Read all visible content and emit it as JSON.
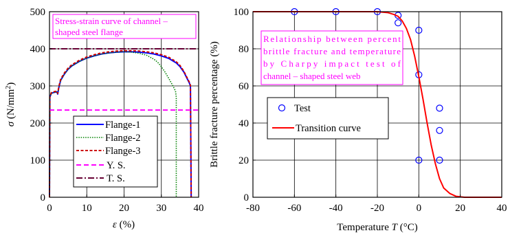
{
  "chart_data": [
    {
      "type": "line",
      "title": "Stress-strain curve of channel – shaped steel flange",
      "title_lines": [
        "Stress-strain curve of channel –",
        "shaped steel flange"
      ],
      "xlabel_symbol": "ε",
      "xlabel_unit": " (%)",
      "ylabel_symbol": "σ",
      "ylabel_unit": " (N/mm",
      "ylabel_sup": "2",
      "ylabel_close": ")",
      "xlim": [
        0,
        40
      ],
      "ylim": [
        0,
        500
      ],
      "xticks": [
        "0",
        "10",
        "20",
        "30",
        "40"
      ],
      "yticks": [
        "0",
        "100",
        "200",
        "300",
        "400",
        "500"
      ],
      "grid": true,
      "legend_position": "bottom-center",
      "colors": {
        "flange1": "#0000ff",
        "flange2": "#008000",
        "flange3": "#cc0000",
        "ys": "#ff00ff",
        "ts": "#660033",
        "annotation": "#ff00ff"
      },
      "series": [
        {
          "name": "Flange-1",
          "style": "solid",
          "x": [
            0,
            0.1,
            0.5,
            1,
            1.5,
            2,
            2.2,
            2.5,
            3,
            4,
            5,
            6,
            8,
            10,
            12,
            14,
            16,
            18,
            20,
            22,
            24,
            26,
            28,
            30,
            32,
            34,
            35,
            36,
            37,
            37.5,
            37.8,
            37.9,
            38
          ],
          "y": [
            0,
            270,
            280,
            282,
            283,
            284,
            278,
            295,
            315,
            332,
            345,
            354,
            366,
            375,
            381,
            386,
            389,
            391,
            392,
            392,
            391,
            389,
            386,
            381,
            374,
            362,
            352,
            338,
            318,
            308,
            300,
            150,
            0
          ]
        },
        {
          "name": "Flange-2",
          "style": "dotted",
          "x": [
            0,
            0.1,
            0.5,
            1,
            1.5,
            2,
            2.2,
            2.5,
            3,
            4,
            5,
            6,
            8,
            10,
            12,
            14,
            16,
            18,
            20,
            22,
            24,
            26,
            28,
            29,
            30,
            31,
            32,
            33,
            33.5,
            33.8,
            34,
            34,
            34
          ],
          "y": [
            0,
            270,
            280,
            282,
            283,
            284,
            278,
            295,
            315,
            332,
            345,
            354,
            366,
            375,
            381,
            386,
            389,
            391,
            392,
            391,
            388,
            383,
            372,
            364,
            352,
            337,
            320,
            302,
            292,
            286,
            270,
            100,
            0
          ]
        },
        {
          "name": "Flange-3",
          "style": "dashed",
          "x": [
            0,
            0.1,
            0.5,
            1,
            1.5,
            2,
            2.2,
            2.5,
            3,
            4,
            5,
            6,
            8,
            10,
            12,
            14,
            16,
            18,
            20,
            22,
            24,
            26,
            28,
            30,
            32,
            34,
            35,
            36,
            37,
            37.5,
            37.8,
            37.9,
            38
          ],
          "y": [
            0,
            270,
            282,
            284,
            285,
            286,
            280,
            298,
            318,
            335,
            348,
            357,
            369,
            378,
            384,
            389,
            392,
            394,
            395,
            395,
            394,
            392,
            389,
            384,
            377,
            365,
            355,
            340,
            320,
            310,
            302,
            150,
            0
          ]
        },
        {
          "name": "Y. S.",
          "style": "dashed",
          "x": [
            0,
            40
          ],
          "y": [
            235,
            235
          ]
        },
        {
          "name": "T. S.",
          "style": "dashdot",
          "x": [
            0,
            40
          ],
          "y": [
            400,
            400
          ]
        }
      ]
    },
    {
      "type": "scatter",
      "annotation": "Relationship between percent brittle fracture and temperature by Charpy impact test of channel – shaped steel web",
      "annotation_lines": [
        "Relationship between percent",
        "brittle fracture and temperature",
        "by Charpy impact test of",
        "channel – shaped steel web"
      ],
      "xlabel": "Temperature ",
      "xlabel_symbol": "T",
      "xlabel_unit": " (°C)",
      "ylabel": "Brittle fracture percentage  (%)",
      "xlim": [
        -80,
        40
      ],
      "ylim": [
        0,
        100
      ],
      "xticks": [
        "-80",
        "-60",
        "-40",
        "-20",
        "0",
        "20",
        "40"
      ],
      "yticks": [
        "0",
        "20",
        "40",
        "60",
        "80",
        "100"
      ],
      "grid": true,
      "legend_position": "middle-left",
      "colors": {
        "test": "#0000ff",
        "transition": "#ff0000"
      },
      "series": [
        {
          "name": "Test",
          "style": "open-circle",
          "x": [
            -60,
            -40,
            -20,
            -10,
            -10,
            0,
            0,
            0,
            10,
            10,
            10
          ],
          "y": [
            100,
            100,
            100,
            98,
            94,
            90,
            66,
            20,
            48,
            36,
            20
          ]
        },
        {
          "name": "Transition curve",
          "style": "solid",
          "x": [
            -80,
            -20,
            -15,
            -12,
            -10,
            -8,
            -6,
            -4,
            -2,
            0,
            2,
            4,
            6,
            8,
            10,
            12,
            15,
            18,
            22,
            40
          ],
          "y": [
            100,
            100,
            99.5,
            98.5,
            97.5,
            95,
            91,
            85,
            76,
            65,
            53,
            40,
            28,
            18,
            10,
            5,
            2,
            0.5,
            0,
            0
          ]
        }
      ]
    }
  ]
}
